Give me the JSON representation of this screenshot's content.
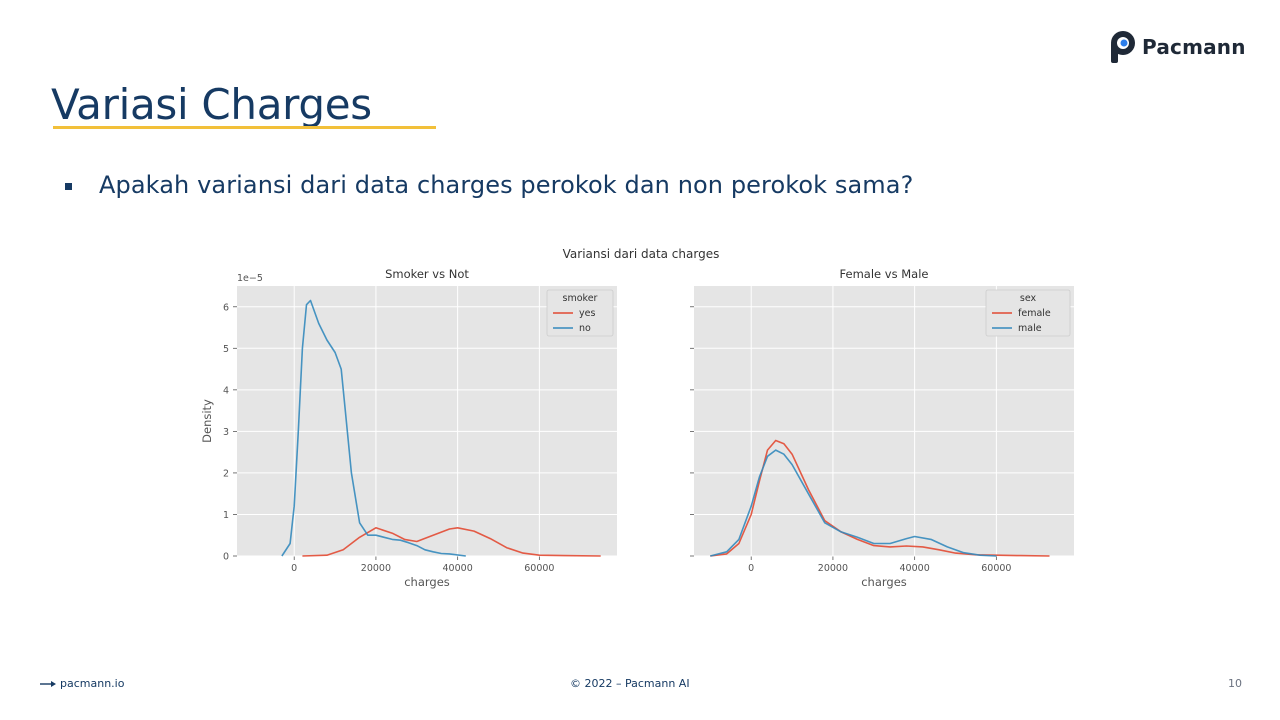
{
  "brand": {
    "name": "Pacmann",
    "icon": "pacmann-logo-icon"
  },
  "slide": {
    "title": "Variasi Charges",
    "question": "Apakah variansi dari data charges perokok dan non perokok sama?"
  },
  "footer": {
    "link_text": "pacmann.io",
    "copyright": "© 2022 – Pacmann AI",
    "page_number": "10"
  },
  "colors": {
    "title": "#163a63",
    "underline": "#f2c03a",
    "red": "#e24a33",
    "blue": "#348abd",
    "plot_bg": "#e5e5e5"
  },
  "chart_data": [
    {
      "type": "line",
      "suptitle": "Variansi dari data charges",
      "title": "Smoker vs Not",
      "xlabel": "charges",
      "ylabel": "Density",
      "y_offset_text": "1e−5",
      "xlim": [
        -14000,
        79000
      ],
      "ylim": [
        0,
        6.5
      ],
      "xticks": [
        "0",
        "20000",
        "40000",
        "60000"
      ],
      "yticks": [
        "0",
        "1",
        "2",
        "3",
        "4",
        "5",
        "6"
      ],
      "grid": true,
      "legend": {
        "title": "smoker",
        "position": "top-right"
      },
      "series": [
        {
          "name": "yes",
          "color": "#e24a33",
          "x": [
            2000,
            8000,
            12000,
            16000,
            20000,
            24000,
            27000,
            30000,
            34000,
            38000,
            40000,
            44000,
            48000,
            52000,
            56000,
            60000,
            66000,
            75000
          ],
          "y": [
            0.0,
            0.02,
            0.15,
            0.45,
            0.68,
            0.55,
            0.4,
            0.35,
            0.5,
            0.65,
            0.68,
            0.6,
            0.42,
            0.2,
            0.07,
            0.02,
            0.01,
            0.0
          ]
        },
        {
          "name": "no",
          "color": "#348abd",
          "x": [
            -3000,
            -1000,
            0,
            1000,
            2000,
            3000,
            4000,
            6000,
            8000,
            10000,
            11500,
            12500,
            14000,
            16000,
            18000,
            20000,
            22000,
            24000,
            26000,
            28000,
            30000,
            32000,
            34000,
            36000,
            38000,
            42000
          ],
          "y": [
            0.0,
            0.3,
            1.2,
            3.0,
            5.0,
            6.05,
            6.15,
            5.6,
            5.2,
            4.9,
            4.5,
            3.5,
            2.0,
            0.8,
            0.5,
            0.5,
            0.45,
            0.4,
            0.38,
            0.32,
            0.25,
            0.15,
            0.1,
            0.06,
            0.05,
            0.0
          ]
        }
      ]
    },
    {
      "type": "line",
      "title": "Female vs Male",
      "xlabel": "charges",
      "xlim": [
        -14000,
        79000
      ],
      "ylim": [
        0,
        6.5
      ],
      "xticks": [
        "0",
        "20000",
        "40000",
        "60000"
      ],
      "grid": true,
      "legend": {
        "title": "sex",
        "position": "top-right"
      },
      "series": [
        {
          "name": "female",
          "color": "#e24a33",
          "x": [
            -10000,
            -6000,
            -3000,
            0,
            2000,
            4000,
            6000,
            8000,
            10000,
            14000,
            18000,
            22000,
            26000,
            30000,
            34000,
            38000,
            42000,
            46000,
            50000,
            55000,
            60000,
            66000,
            73000
          ],
          "y": [
            0.0,
            0.05,
            0.3,
            1.0,
            1.8,
            2.55,
            2.78,
            2.7,
            2.45,
            1.6,
            0.85,
            0.58,
            0.4,
            0.25,
            0.22,
            0.24,
            0.22,
            0.15,
            0.07,
            0.03,
            0.02,
            0.01,
            0.0
          ]
        },
        {
          "name": "male",
          "color": "#348abd",
          "x": [
            -10000,
            -6000,
            -3000,
            0,
            2000,
            4000,
            6000,
            8000,
            10000,
            14000,
            18000,
            22000,
            26000,
            30000,
            34000,
            38000,
            40000,
            44000,
            48000,
            52000,
            56000,
            60000
          ],
          "y": [
            0.0,
            0.1,
            0.4,
            1.2,
            1.9,
            2.4,
            2.55,
            2.45,
            2.2,
            1.5,
            0.8,
            0.58,
            0.45,
            0.3,
            0.3,
            0.42,
            0.47,
            0.4,
            0.22,
            0.08,
            0.02,
            0.0
          ]
        }
      ]
    }
  ]
}
